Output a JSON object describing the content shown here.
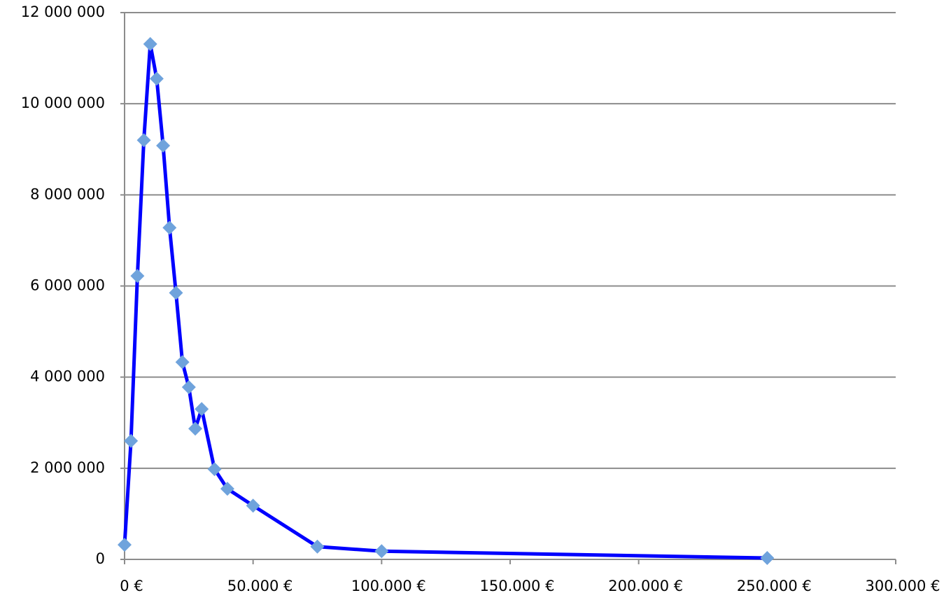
{
  "chart_data": {
    "type": "line",
    "x": [
      0,
      2500,
      5000,
      7500,
      10000,
      12500,
      15000,
      17500,
      20000,
      22500,
      25000,
      27500,
      30000,
      35000,
      40000,
      50000,
      75000,
      100000,
      250000
    ],
    "series": [
      {
        "color": "#0000ff",
        "marker_color": "#6fa3dc",
        "values": [
          320000,
          2600000,
          6220000,
          9200000,
          11310000,
          10550000,
          9080000,
          7280000,
          5850000,
          4330000,
          3780000,
          2870000,
          3300000,
          1980000,
          1550000,
          1180000,
          280000,
          180000,
          30000
        ]
      }
    ],
    "xlim": [
      0,
      300000
    ],
    "xticks": [
      {
        "value": 0,
        "label": "0 €"
      },
      {
        "value": 50000,
        "label": "50.000 €"
      },
      {
        "value": 100000,
        "label": "100.000 €"
      },
      {
        "value": 150000,
        "label": "150.000 €"
      },
      {
        "value": 200000,
        "label": "200.000 €"
      },
      {
        "value": 250000,
        "label": "250.000 €"
      },
      {
        "value": 300000,
        "label": "300.000 €"
      }
    ],
    "ylim": [
      0,
      12000000
    ],
    "yticks": [
      0,
      {
        "value": 2000000,
        "label": "2 000 000"
      },
      {
        "value": 4000000,
        "label": "4 000 000"
      },
      {
        "value": 6000000,
        "label": "6 000 000"
      },
      {
        "value": 8000000,
        "label": "8 000 000"
      },
      {
        "value": 10000000,
        "label": "10 000 000"
      },
      {
        "value": 12000000,
        "label": "12 000 000"
      }
    ],
    "grid": true
  }
}
